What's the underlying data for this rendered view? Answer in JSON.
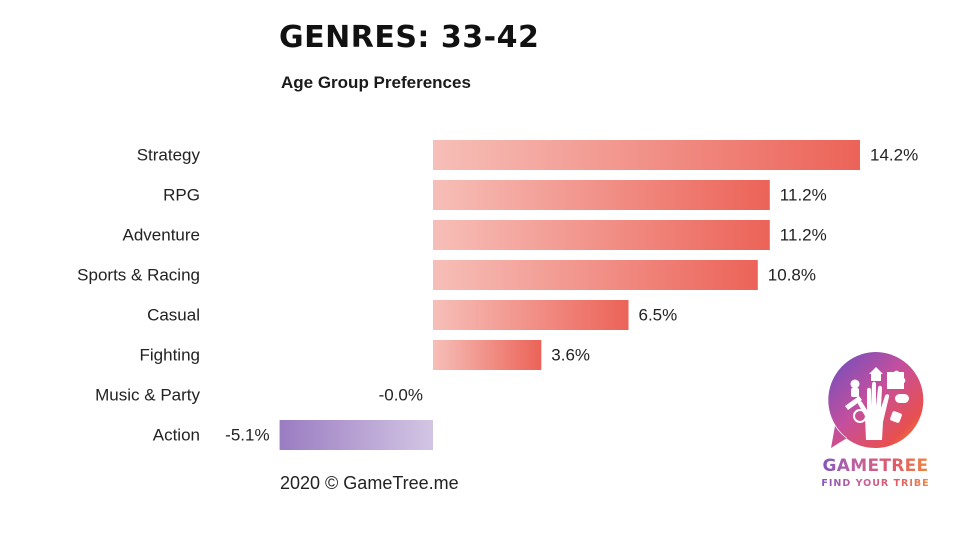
{
  "header": {
    "title": "GENRES: 33-42",
    "subtitle": "Age Group Preferences"
  },
  "footer": {
    "copyright": "2020 © GameTree.me"
  },
  "logo": {
    "name": "GAMETREE",
    "tagline": "FIND YOUR TRIBE",
    "icon": "gametree-hand-tree-logo"
  },
  "colors": {
    "positive_start": "#f6bfb8",
    "positive_end": "#ec6358",
    "negative_start": "#9a7cc1",
    "negative_end": "#d3c6e4",
    "label_text": "#222222"
  },
  "chart_data": {
    "type": "bar",
    "orientation": "horizontal",
    "title": "GENRES: 33-42",
    "subtitle": "Age Group Preferences",
    "categories": [
      "Strategy",
      "RPG",
      "Adventure",
      "Sports & Racing",
      "Casual",
      "Fighting",
      "Music & Party",
      "Action"
    ],
    "values": [
      14.2,
      11.2,
      11.2,
      10.8,
      6.5,
      3.6,
      -0.0,
      -5.1
    ],
    "labels": [
      "14.2%",
      "11.2%",
      "11.2%",
      "10.8%",
      "6.5%",
      "3.6%",
      "-0.0%",
      "-5.1%"
    ],
    "unit": "%",
    "xlim": [
      -5.1,
      14.2
    ],
    "grid": false,
    "legend": "none"
  }
}
